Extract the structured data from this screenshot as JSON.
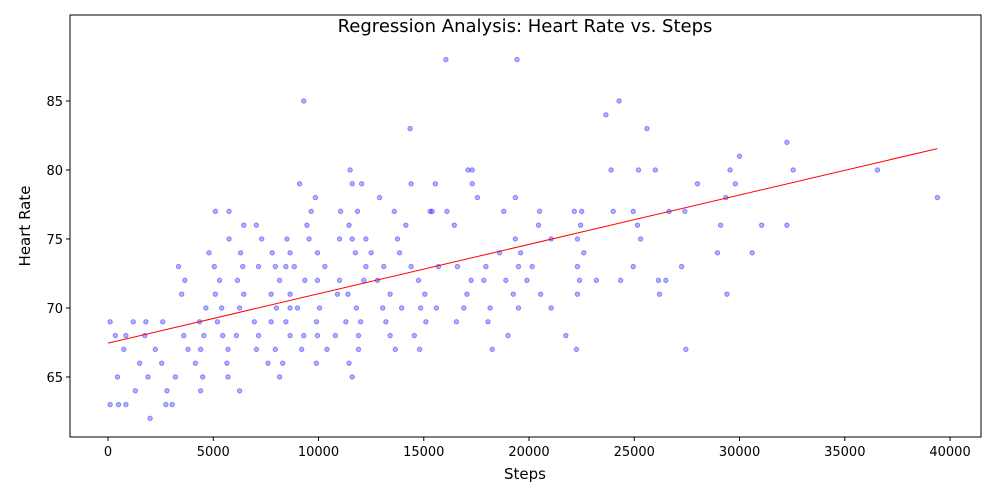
{
  "chart_data": {
    "type": "scatter",
    "title": "Regression Analysis: Heart Rate vs. Steps",
    "xlabel": "Steps",
    "ylabel": "Heart Rate",
    "xlim": [
      -1805,
      41470
    ],
    "ylim": [
      60.65,
      91.23
    ],
    "xticks": [
      0,
      5000,
      10000,
      15000,
      20000,
      25000,
      30000,
      35000,
      40000
    ],
    "yticks": [
      65,
      70,
      75,
      80,
      85
    ],
    "grid": false,
    "point_color": "#0000ff",
    "line_color": "#ff0000",
    "regression_line": {
      "x": [
        0,
        39400
      ],
      "y": [
        67.45,
        81.55
      ]
    },
    "points": [
      [
        16050,
        88
      ],
      [
        19430,
        88
      ],
      [
        9300,
        85
      ],
      [
        24280,
        85
      ],
      [
        23650,
        84
      ],
      [
        14350,
        83
      ],
      [
        25600,
        83
      ],
      [
        32250,
        82
      ],
      [
        30000,
        81
      ],
      [
        11500,
        80
      ],
      [
        17100,
        80
      ],
      [
        17300,
        80
      ],
      [
        23900,
        80
      ],
      [
        25200,
        80
      ],
      [
        26000,
        80
      ],
      [
        29550,
        80
      ],
      [
        32550,
        80
      ],
      [
        36550,
        80
      ],
      [
        9100,
        79
      ],
      [
        11600,
        79
      ],
      [
        12050,
        79
      ],
      [
        14400,
        79
      ],
      [
        15550,
        79
      ],
      [
        17300,
        79
      ],
      [
        28000,
        79
      ],
      [
        29800,
        79
      ],
      [
        9850,
        78
      ],
      [
        12900,
        78
      ],
      [
        17550,
        78
      ],
      [
        19350,
        78
      ],
      [
        29350,
        78
      ],
      [
        39400,
        78
      ],
      [
        5100,
        77
      ],
      [
        5750,
        77
      ],
      [
        9650,
        77
      ],
      [
        11050,
        77
      ],
      [
        11850,
        77
      ],
      [
        13600,
        77
      ],
      [
        15300,
        77
      ],
      [
        15400,
        77
      ],
      [
        16100,
        77
      ],
      [
        18800,
        77
      ],
      [
        20500,
        77
      ],
      [
        22150,
        77
      ],
      [
        22500,
        77
      ],
      [
        24000,
        77
      ],
      [
        24950,
        77
      ],
      [
        26650,
        77
      ],
      [
        27400,
        77
      ],
      [
        6450,
        76
      ],
      [
        7050,
        76
      ],
      [
        9450,
        76
      ],
      [
        11450,
        76
      ],
      [
        14150,
        76
      ],
      [
        16450,
        76
      ],
      [
        20450,
        76
      ],
      [
        22450,
        76
      ],
      [
        25150,
        76
      ],
      [
        29100,
        76
      ],
      [
        31050,
        76
      ],
      [
        32250,
        76
      ],
      [
        5750,
        75
      ],
      [
        7300,
        75
      ],
      [
        8500,
        75
      ],
      [
        9550,
        75
      ],
      [
        11000,
        75
      ],
      [
        11600,
        75
      ],
      [
        12250,
        75
      ],
      [
        13750,
        75
      ],
      [
        19350,
        75
      ],
      [
        21050,
        75
      ],
      [
        22300,
        75
      ],
      [
        25300,
        75
      ],
      [
        4800,
        74
      ],
      [
        6300,
        74
      ],
      [
        7800,
        74
      ],
      [
        8650,
        74
      ],
      [
        9950,
        74
      ],
      [
        11750,
        74
      ],
      [
        12500,
        74
      ],
      [
        13850,
        74
      ],
      [
        18600,
        74
      ],
      [
        19600,
        74
      ],
      [
        22600,
        74
      ],
      [
        28950,
        74
      ],
      [
        30600,
        74
      ],
      [
        3350,
        73
      ],
      [
        5050,
        73
      ],
      [
        6400,
        73
      ],
      [
        7150,
        73
      ],
      [
        7950,
        73
      ],
      [
        8450,
        73
      ],
      [
        8850,
        73
      ],
      [
        10300,
        73
      ],
      [
        12250,
        73
      ],
      [
        13100,
        73
      ],
      [
        14400,
        73
      ],
      [
        15700,
        73
      ],
      [
        16600,
        73
      ],
      [
        17950,
        73
      ],
      [
        19500,
        73
      ],
      [
        20150,
        73
      ],
      [
        22300,
        73
      ],
      [
        24950,
        73
      ],
      [
        27250,
        73
      ],
      [
        3650,
        72
      ],
      [
        5300,
        72
      ],
      [
        6150,
        72
      ],
      [
        8150,
        72
      ],
      [
        9350,
        72
      ],
      [
        9950,
        72
      ],
      [
        11000,
        72
      ],
      [
        12150,
        72
      ],
      [
        12800,
        72
      ],
      [
        14750,
        72
      ],
      [
        17250,
        72
      ],
      [
        17850,
        72
      ],
      [
        18900,
        72
      ],
      [
        19900,
        72
      ],
      [
        22400,
        72
      ],
      [
        23200,
        72
      ],
      [
        24350,
        72
      ],
      [
        26150,
        72
      ],
      [
        26500,
        72
      ],
      [
        3500,
        71
      ],
      [
        5100,
        71
      ],
      [
        6450,
        71
      ],
      [
        7750,
        71
      ],
      [
        8650,
        71
      ],
      [
        10900,
        71
      ],
      [
        11400,
        71
      ],
      [
        13400,
        71
      ],
      [
        15050,
        71
      ],
      [
        17050,
        71
      ],
      [
        19250,
        71
      ],
      [
        20550,
        71
      ],
      [
        22300,
        71
      ],
      [
        26200,
        71
      ],
      [
        29400,
        71
      ],
      [
        4650,
        70
      ],
      [
        5400,
        70
      ],
      [
        6250,
        70
      ],
      [
        8000,
        70
      ],
      [
        8650,
        70
      ],
      [
        9000,
        70
      ],
      [
        10050,
        70
      ],
      [
        11800,
        70
      ],
      [
        13050,
        70
      ],
      [
        13950,
        70
      ],
      [
        14850,
        70
      ],
      [
        15600,
        70
      ],
      [
        16900,
        70
      ],
      [
        18150,
        70
      ],
      [
        19500,
        70
      ],
      [
        21050,
        70
      ],
      [
        100,
        69
      ],
      [
        1200,
        69
      ],
      [
        1800,
        69
      ],
      [
        2600,
        69
      ],
      [
        4350,
        69
      ],
      [
        5200,
        69
      ],
      [
        6950,
        69
      ],
      [
        7750,
        69
      ],
      [
        8450,
        69
      ],
      [
        9900,
        69
      ],
      [
        11300,
        69
      ],
      [
        12000,
        69
      ],
      [
        13200,
        69
      ],
      [
        15100,
        69
      ],
      [
        16550,
        69
      ],
      [
        18050,
        69
      ],
      [
        350,
        68
      ],
      [
        850,
        68
      ],
      [
        1750,
        68
      ],
      [
        3600,
        68
      ],
      [
        4550,
        68
      ],
      [
        5450,
        68
      ],
      [
        6100,
        68
      ],
      [
        7150,
        68
      ],
      [
        8650,
        68
      ],
      [
        9300,
        68
      ],
      [
        9950,
        68
      ],
      [
        10800,
        68
      ],
      [
        11900,
        68
      ],
      [
        13400,
        68
      ],
      [
        14550,
        68
      ],
      [
        19000,
        68
      ],
      [
        21750,
        68
      ],
      [
        750,
        67
      ],
      [
        2250,
        67
      ],
      [
        3800,
        67
      ],
      [
        4400,
        67
      ],
      [
        5700,
        67
      ],
      [
        7050,
        67
      ],
      [
        7950,
        67
      ],
      [
        9200,
        67
      ],
      [
        10400,
        67
      ],
      [
        11900,
        67
      ],
      [
        13650,
        67
      ],
      [
        14800,
        67
      ],
      [
        18250,
        67
      ],
      [
        22250,
        67
      ],
      [
        27450,
        67
      ],
      [
        1500,
        66
      ],
      [
        2550,
        66
      ],
      [
        4150,
        66
      ],
      [
        5650,
        66
      ],
      [
        7600,
        66
      ],
      [
        8300,
        66
      ],
      [
        9900,
        66
      ],
      [
        11450,
        66
      ],
      [
        450,
        65
      ],
      [
        1900,
        65
      ],
      [
        3200,
        65
      ],
      [
        4500,
        65
      ],
      [
        5700,
        65
      ],
      [
        8150,
        65
      ],
      [
        11600,
        65
      ],
      [
        1300,
        64
      ],
      [
        2800,
        64
      ],
      [
        4400,
        64
      ],
      [
        6250,
        64
      ],
      [
        100,
        63
      ],
      [
        500,
        63
      ],
      [
        850,
        63
      ],
      [
        2750,
        63
      ],
      [
        3050,
        63
      ],
      [
        2000,
        62
      ]
    ]
  }
}
